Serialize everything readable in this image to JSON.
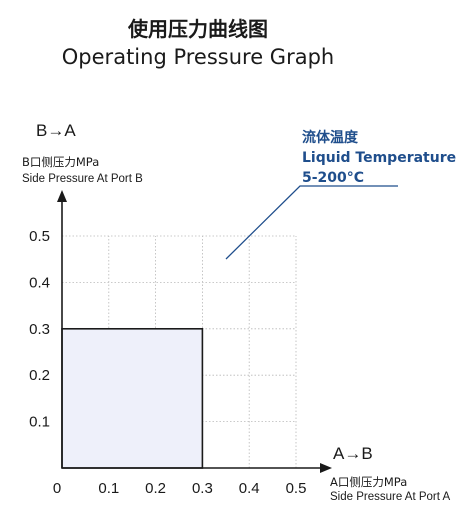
{
  "chart_data": {
    "type": "area",
    "title": "使用压力曲线图",
    "subtitle": "Operating Pressure Graph",
    "y_direction": "B→A",
    "x_direction": "A→B",
    "ylabel_cn": "B口侧压力MPa",
    "ylabel_en": "Side Pressure At Port B",
    "xlabel_cn": "A口侧压力MPa",
    "xlabel_en": "Side Pressure At Port A",
    "x_ticks": [
      "0",
      "0.1",
      "0.2",
      "0.3",
      "0.4",
      "0.5"
    ],
    "y_ticks": [
      "0.1",
      "0.2",
      "0.3",
      "0.4",
      "0.5"
    ],
    "xlim": [
      0,
      0.5
    ],
    "ylim": [
      0,
      0.5
    ],
    "grid": true,
    "grid_style": "dotted",
    "region": {
      "x": [
        0,
        0.3
      ],
      "y": [
        0,
        0.3
      ]
    },
    "region_fill": "#eef0fa",
    "annotation": {
      "line1": "流体温度",
      "line2": "Liquid Temperature",
      "line3": "5-200°C",
      "color": "#1f4e8c"
    }
  }
}
